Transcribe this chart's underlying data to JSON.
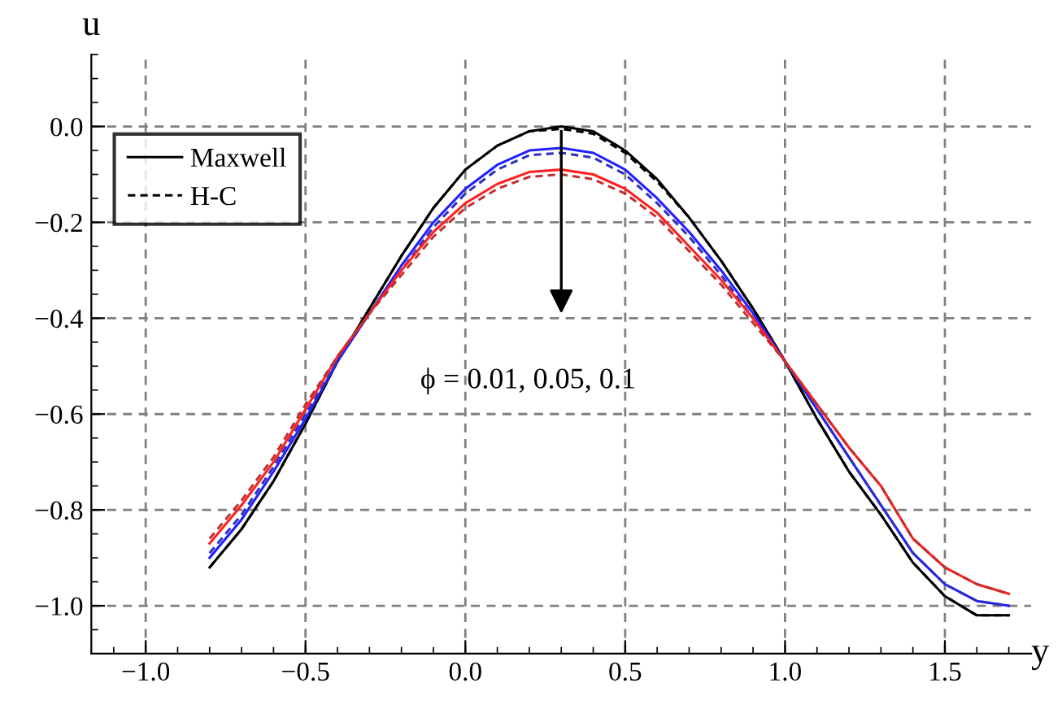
{
  "chart_data": {
    "type": "line",
    "xlabel": "y",
    "ylabel": "u",
    "x": [
      -0.8,
      -0.7,
      -0.6,
      -0.5,
      -0.4,
      -0.3,
      -0.2,
      -0.1,
      0.0,
      0.1,
      0.2,
      0.3,
      0.4,
      0.5,
      0.6,
      0.7,
      0.8,
      0.9,
      1.0,
      1.1,
      1.2,
      1.3,
      1.4,
      1.5,
      1.6,
      1.7
    ],
    "series": [
      {
        "name": "Maxwell",
        "color": "#000000",
        "line_style": "solid",
        "values": [
          -0.92,
          -0.84,
          -0.74,
          -0.62,
          -0.49,
          -0.38,
          -0.27,
          -0.17,
          -0.09,
          -0.04,
          -0.01,
          0.0,
          -0.01,
          -0.05,
          -0.11,
          -0.19,
          -0.28,
          -0.38,
          -0.49,
          -0.61,
          -0.72,
          -0.81,
          -0.91,
          -0.98,
          -1.02,
          -1.02
        ]
      },
      {
        "name": "H-C",
        "color": "#000000",
        "line_style": "dashed",
        "values": [
          -0.92,
          -0.84,
          -0.74,
          -0.62,
          -0.49,
          -0.38,
          -0.27,
          -0.17,
          -0.09,
          -0.04,
          -0.01,
          -0.005,
          -0.015,
          -0.055,
          -0.115,
          -0.19,
          -0.28,
          -0.38,
          -0.49,
          -0.61,
          -0.72,
          -0.81,
          -0.91,
          -0.98,
          -1.02,
          -1.02
        ]
      },
      {
        "color": "#2020ff",
        "line_style": "solid",
        "values": [
          -0.9,
          -0.82,
          -0.72,
          -0.61,
          -0.49,
          -0.39,
          -0.29,
          -0.2,
          -0.13,
          -0.08,
          -0.05,
          -0.045,
          -0.055,
          -0.09,
          -0.15,
          -0.22,
          -0.3,
          -0.39,
          -0.49,
          -0.59,
          -0.69,
          -0.79,
          -0.89,
          -0.955,
          -0.99,
          -1.0
        ]
      },
      {
        "color": "#3030c0",
        "line_style": "dashed",
        "values": [
          -0.89,
          -0.81,
          -0.71,
          -0.6,
          -0.49,
          -0.39,
          -0.3,
          -0.21,
          -0.14,
          -0.09,
          -0.06,
          -0.055,
          -0.065,
          -0.1,
          -0.16,
          -0.23,
          -0.31,
          -0.4,
          -0.49,
          -0.59,
          -0.69,
          -0.79,
          -0.89,
          -0.955,
          -0.99,
          -1.0
        ]
      },
      {
        "color": "#ff2020",
        "line_style": "solid",
        "values": [
          -0.87,
          -0.79,
          -0.7,
          -0.59,
          -0.48,
          -0.39,
          -0.3,
          -0.22,
          -0.16,
          -0.12,
          -0.095,
          -0.09,
          -0.1,
          -0.13,
          -0.18,
          -0.25,
          -0.32,
          -0.4,
          -0.49,
          -0.58,
          -0.67,
          -0.75,
          -0.86,
          -0.92,
          -0.955,
          -0.975
        ]
      },
      {
        "color": "#c03030",
        "line_style": "dashed",
        "values": [
          -0.86,
          -0.78,
          -0.69,
          -0.58,
          -0.48,
          -0.39,
          -0.31,
          -0.23,
          -0.17,
          -0.13,
          -0.105,
          -0.1,
          -0.11,
          -0.14,
          -0.19,
          -0.26,
          -0.33,
          -0.41,
          -0.49,
          -0.58,
          -0.67,
          -0.75,
          -0.86,
          -0.92,
          -0.955,
          -0.975
        ]
      }
    ],
    "xlim": [
      -1.17,
      1.77
    ],
    "ylim": [
      -1.1,
      0.15
    ],
    "xticks": [
      {
        "value": -1.0,
        "label": "−1.0"
      },
      {
        "value": -0.5,
        "label": "−0.5"
      },
      {
        "value": 0.0,
        "label": "0.0"
      },
      {
        "value": 0.5,
        "label": "0.5"
      },
      {
        "value": 1.0,
        "label": "1.0"
      },
      {
        "value": 1.5,
        "label": "1.5"
      }
    ],
    "yticks": [
      {
        "value": 0.0,
        "label": "0.0"
      },
      {
        "value": -0.2,
        "label": "−0.2"
      },
      {
        "value": -0.4,
        "label": "−0.4"
      },
      {
        "value": -0.6,
        "label": "−0.6"
      },
      {
        "value": -0.8,
        "label": "−0.8"
      },
      {
        "value": -1.0,
        "label": "−1.0"
      }
    ],
    "grid": true,
    "legend": "top left",
    "annotations": [
      "ϕ = 0.01, 0.05, 0.1"
    ]
  }
}
